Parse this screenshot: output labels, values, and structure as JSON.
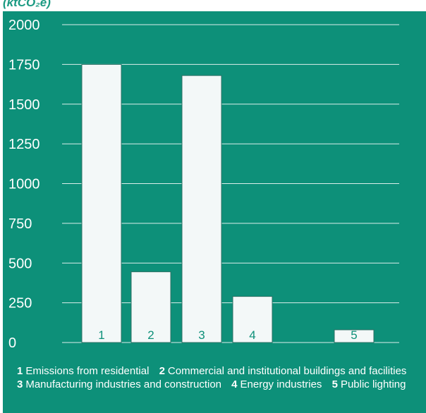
{
  "chart_data": {
    "type": "bar",
    "unit_label": "(ktCO₂e)",
    "categories": [
      "1",
      "2",
      "3",
      "4",
      "5"
    ],
    "values": [
      1750,
      445,
      1680,
      290,
      80
    ],
    "ylim": [
      0,
      2000
    ],
    "yticks": [
      "0",
      "250",
      "500",
      "750",
      "1000",
      "1250",
      "1500",
      "1750",
      "2000"
    ],
    "grid": true,
    "colors": {
      "background": "#0d9079",
      "bar_fill": "#f3f8f8",
      "bar_label": "#0d9079",
      "text": "#ffffff"
    },
    "legend": [
      {
        "num": "1",
        "text": "Emissions from residential"
      },
      {
        "num": "2",
        "text": "Commercial and institutional buildings and facilities"
      },
      {
        "num": "3",
        "text": "Manufacturing industries and construction"
      },
      {
        "num": "4",
        "text": "Energy industries"
      },
      {
        "num": "5",
        "text": "Public lighting"
      }
    ]
  }
}
